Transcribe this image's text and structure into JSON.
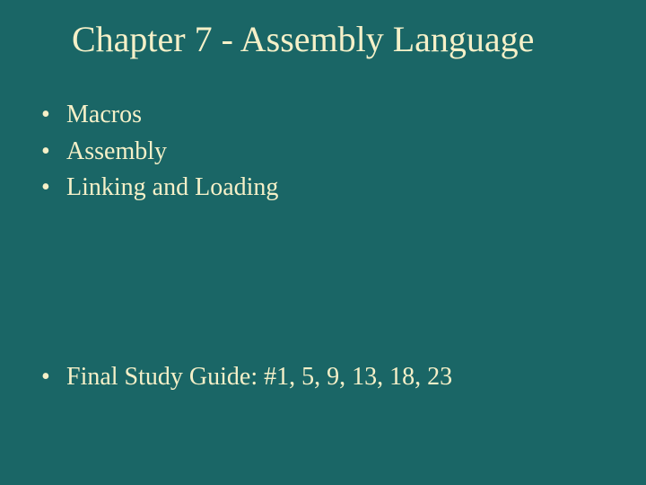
{
  "slide": {
    "background_color": "#1a6666",
    "text_color": "#f5f0c8",
    "title": "Chapter 7 - Assembly Language",
    "title_fontsize": 40,
    "body_fontsize": 28,
    "font_family": "Times New Roman",
    "bullets_top": [
      "Macros",
      "Assembly",
      "Linking and Loading"
    ],
    "bullets_bottom": [
      "Final Study Guide: #1, 5, 9, 13, 18, 23"
    ]
  }
}
